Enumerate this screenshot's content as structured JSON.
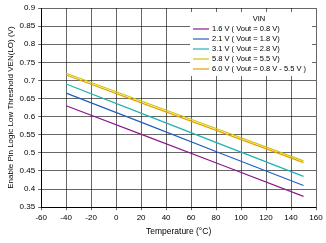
{
  "chart_data": {
    "type": "line",
    "x_label": "Temperature (°C)",
    "y_label": "Enable Pin Logic Low Threshold VEN(LO) (V)",
    "legend_title": "VIN",
    "legend": "upper right",
    "grid": true,
    "x": [
      -40,
      25,
      85,
      150
    ],
    "series": [
      {
        "name": "1.6 V ( Vout = 0.8 V)",
        "color": "#8b1a8b",
        "values": [
          0.63,
          0.545,
          0.466,
          0.38
        ]
      },
      {
        "name": "2.1 V ( Vout = 1.8 V)",
        "color": "#2060c0",
        "values": [
          0.665,
          0.578,
          0.497,
          0.41
        ]
      },
      {
        "name": "3.1 V ( Vout = 2.8 V)",
        "color": "#20b0b0",
        "values": [
          0.69,
          0.603,
          0.522,
          0.435
        ]
      },
      {
        "name": "5.8 V ( Vout = 5.5 V)",
        "color": "#c8c800",
        "values": [
          0.72,
          0.637,
          0.561,
          0.478
        ]
      },
      {
        "name": "6.0 V ( Vout = 0.8 V - 5.5 V )",
        "color": "#e8a000",
        "values": [
          0.715,
          0.632,
          0.556,
          0.473
        ]
      }
    ],
    "xlim": [
      -60,
      160
    ],
    "xticks": [
      -60,
      -40,
      -20,
      0,
      20,
      40,
      60,
      80,
      100,
      120,
      140,
      160
    ],
    "ylim": [
      0.35,
      0.9
    ],
    "yticks": [
      0.35,
      0.4,
      0.45,
      0.5,
      0.55,
      0.6,
      0.65,
      0.7,
      0.75,
      0.8,
      0.85,
      0.9
    ]
  }
}
